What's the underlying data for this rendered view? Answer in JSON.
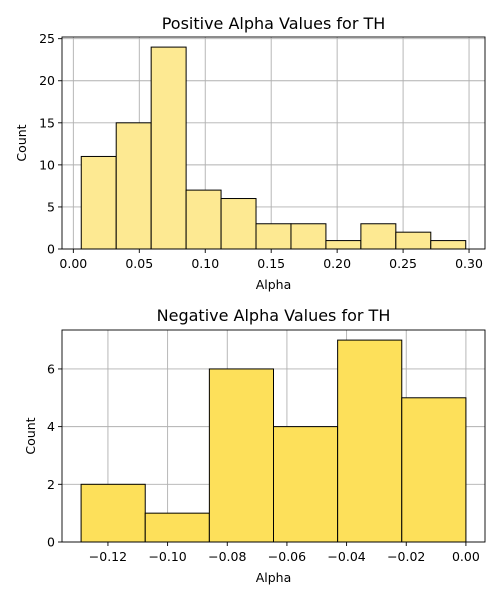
{
  "chart_data": [
    {
      "type": "bar",
      "subtype": "histogram",
      "title": "Positive Alpha Values for TH",
      "xlabel": "Alpha",
      "ylabel": "Count",
      "bin_edges": [
        0.006,
        0.0325,
        0.059,
        0.0855,
        0.112,
        0.1385,
        0.165,
        0.1915,
        0.218,
        0.2445,
        0.271,
        0.2975
      ],
      "values": [
        11,
        15,
        24,
        7,
        6,
        3,
        3,
        1,
        3,
        2,
        1
      ],
      "xlim": [
        -0.0086,
        0.3121
      ],
      "ylim": [
        0,
        25.2
      ],
      "xticks": [
        0.0,
        0.05,
        0.1,
        0.15,
        0.2,
        0.25,
        0.3
      ],
      "xtick_labels": [
        "0.00",
        "0.05",
        "0.10",
        "0.15",
        "0.20",
        "0.25",
        "0.30"
      ],
      "yticks": [
        0,
        5,
        10,
        15,
        20,
        25
      ],
      "ytick_labels": [
        "0",
        "5",
        "10",
        "15",
        "20",
        "25"
      ],
      "grid": true,
      "color": "#fde992"
    },
    {
      "type": "bar",
      "subtype": "histogram",
      "title": "Negative Alpha Values for TH",
      "xlabel": "Alpha",
      "ylabel": "Count",
      "bin_edges": [
        -0.129,
        -0.1075,
        -0.086,
        -0.0645,
        -0.043,
        -0.0215,
        0.0
      ],
      "values": [
        2,
        1,
        6,
        4,
        7,
        5
      ],
      "xlim": [
        -0.1354,
        0.0064
      ],
      "ylim": [
        0,
        7.35
      ],
      "xticks": [
        -0.12,
        -0.1,
        -0.08,
        -0.06,
        -0.04,
        -0.02,
        0.0
      ],
      "xtick_labels": [
        "−0.12",
        "−0.10",
        "−0.08",
        "−0.06",
        "−0.04",
        "−0.02",
        "0.00"
      ],
      "yticks": [
        0,
        2,
        4,
        6
      ],
      "ytick_labels": [
        "0",
        "2",
        "4",
        "6"
      ],
      "grid": true,
      "color": "#fde05a"
    }
  ]
}
